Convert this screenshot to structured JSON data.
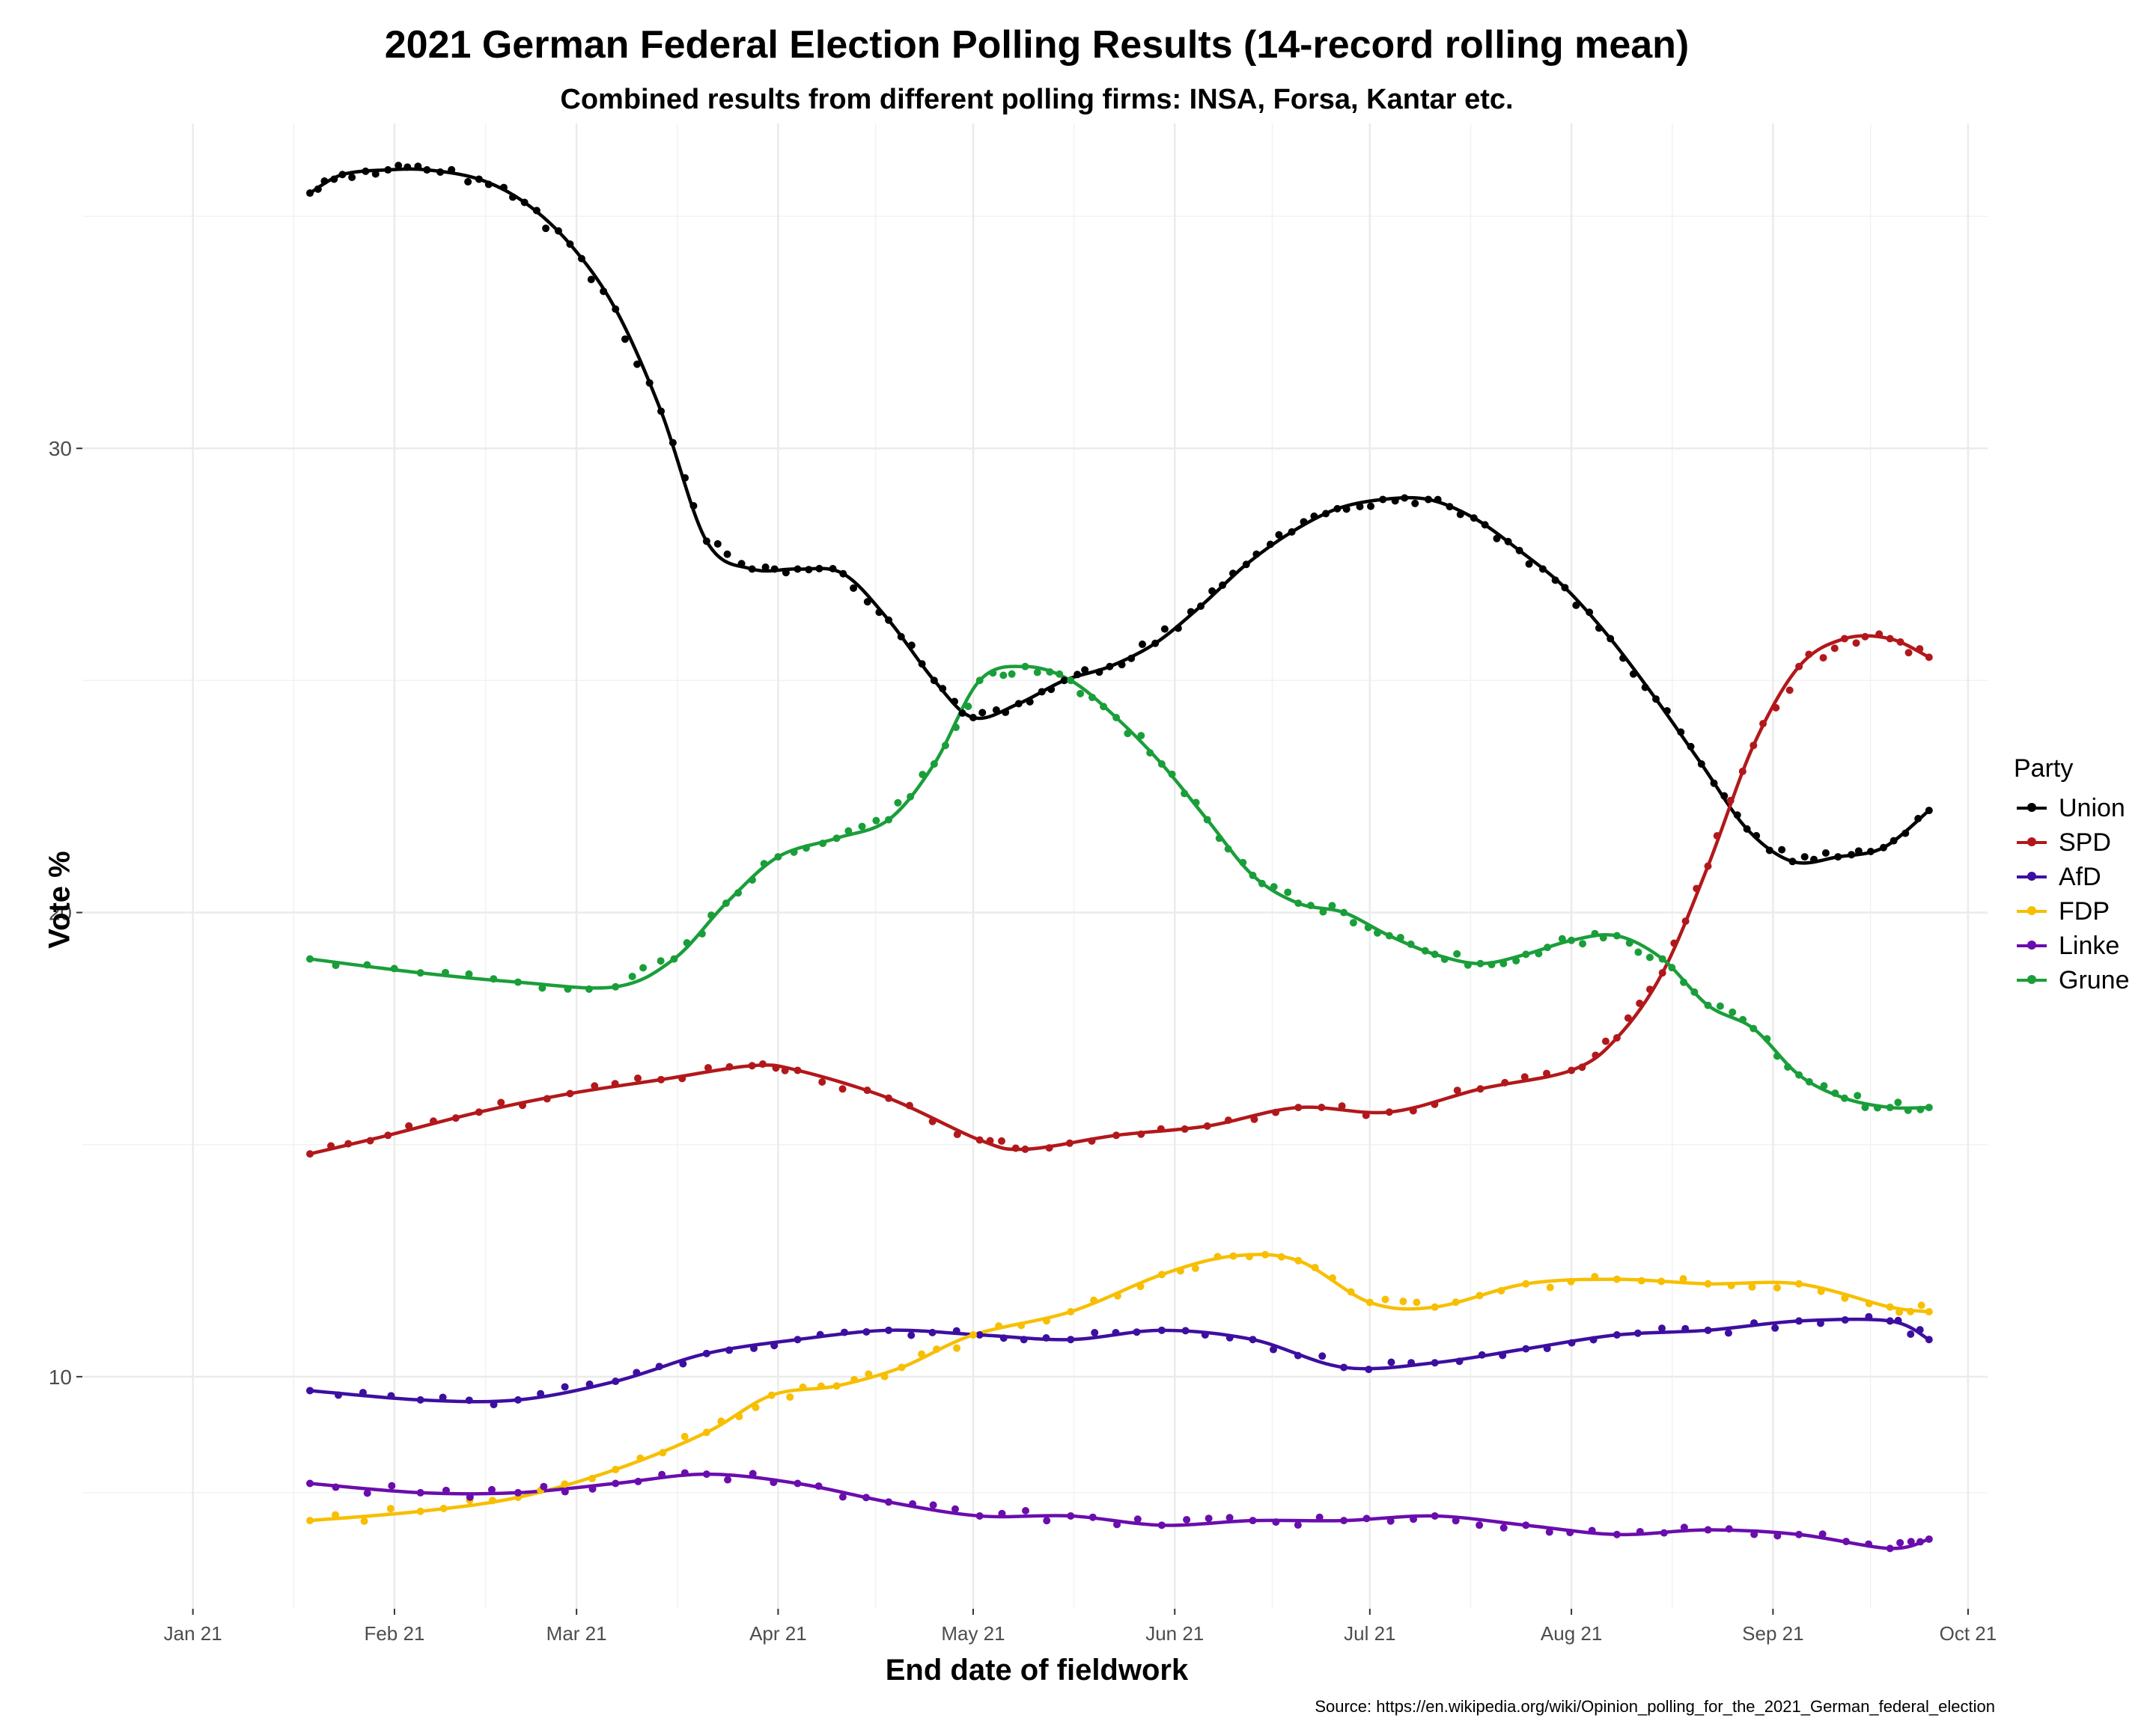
{
  "title": "2021 German Federal Election Polling Results (14-record rolling mean)",
  "subtitle": "Combined results from different polling firms: INSA, Forsa, Kantar etc.",
  "chart_data": {
    "type": "scatter",
    "title": "2021 German Federal Election Polling Results (14-record rolling mean)",
    "subtitle": "Combined results from different polling firms: INSA, Forsa, Kantar etc.",
    "xlabel": "End date of fieldwork",
    "ylabel": "Vote %",
    "x_ticks": [
      "Jan 21",
      "Feb 21",
      "Mar 21",
      "Apr 21",
      "May 21",
      "Jun 21",
      "Jul 21",
      "Aug 21",
      "Sep 21",
      "Oct 21"
    ],
    "y_ticks": [
      10,
      20,
      30
    ],
    "ylim": [
      5,
      37
    ],
    "xlim": [
      "2020-12-15",
      "2021-10-04"
    ],
    "grid": true,
    "legend_title": "Party",
    "legend_position": "right",
    "source": "Source: https://en.wikipedia.org/wiki/Opinion_polling_for_the_2021_German_federal_election",
    "series": [
      {
        "name": "Union",
        "color": "#000000",
        "x": [
          "2021-01-19",
          "2021-01-24",
          "2021-01-31",
          "2021-02-06",
          "2021-02-14",
          "2021-02-21",
          "2021-02-28",
          "2021-03-07",
          "2021-03-14",
          "2021-03-21",
          "2021-03-28",
          "2021-04-04",
          "2021-04-11",
          "2021-04-18",
          "2021-04-25",
          "2021-05-01",
          "2021-05-08",
          "2021-05-15",
          "2021-05-22",
          "2021-05-29",
          "2021-06-05",
          "2021-06-12",
          "2021-06-19",
          "2021-06-26",
          "2021-07-03",
          "2021-07-10",
          "2021-07-17",
          "2021-07-24",
          "2021-07-31",
          "2021-08-07",
          "2021-08-14",
          "2021-08-21",
          "2021-08-28",
          "2021-09-04",
          "2021-09-11",
          "2021-09-18",
          "2021-09-25"
        ],
        "y": [
          35.5,
          35.9,
          36.0,
          36.0,
          35.8,
          35.3,
          34.4,
          33.0,
          30.8,
          28.0,
          27.4,
          27.4,
          27.3,
          26.3,
          25.0,
          24.2,
          24.5,
          25.0,
          25.3,
          25.8,
          26.6,
          27.5,
          28.2,
          28.7,
          28.9,
          28.9,
          28.5,
          27.8,
          27.0,
          25.9,
          24.6,
          23.2,
          21.8,
          21.1,
          21.2,
          21.4,
          22.2
        ]
      },
      {
        "name": "SPD",
        "color": "#b2181b",
        "x": [
          "2021-01-19",
          "2021-01-31",
          "2021-02-14",
          "2021-02-28",
          "2021-03-14",
          "2021-03-28",
          "2021-04-04",
          "2021-04-18",
          "2021-05-02",
          "2021-05-09",
          "2021-05-23",
          "2021-06-06",
          "2021-06-20",
          "2021-07-04",
          "2021-07-18",
          "2021-08-01",
          "2021-08-08",
          "2021-08-15",
          "2021-08-22",
          "2021-08-29",
          "2021-09-05",
          "2021-09-12",
          "2021-09-19",
          "2021-09-25"
        ],
        "y": [
          14.8,
          15.2,
          15.7,
          16.1,
          16.4,
          16.7,
          16.6,
          16.0,
          15.1,
          14.9,
          15.2,
          15.4,
          15.8,
          15.7,
          16.2,
          16.6,
          17.3,
          18.7,
          21.0,
          23.6,
          25.3,
          25.9,
          25.9,
          25.5
        ]
      },
      {
        "name": "AfD",
        "color": "#3d0fa0",
        "x": [
          "2021-01-19",
          "2021-02-05",
          "2021-02-20",
          "2021-03-07",
          "2021-03-21",
          "2021-04-04",
          "2021-04-18",
          "2021-05-02",
          "2021-05-16",
          "2021-05-30",
          "2021-06-13",
          "2021-06-27",
          "2021-07-11",
          "2021-07-25",
          "2021-08-08",
          "2021-08-22",
          "2021-09-05",
          "2021-09-19",
          "2021-09-25"
        ],
        "y": [
          9.7,
          9.5,
          9.5,
          9.9,
          10.5,
          10.8,
          11.0,
          10.9,
          10.8,
          11.0,
          10.8,
          10.2,
          10.3,
          10.6,
          10.9,
          11.0,
          11.2,
          11.2,
          10.8
        ]
      },
      {
        "name": "FDP",
        "color": "#f7bf00",
        "x": [
          "2021-01-19",
          "2021-02-05",
          "2021-02-20",
          "2021-03-07",
          "2021-03-21",
          "2021-03-31",
          "2021-04-10",
          "2021-04-20",
          "2021-05-01",
          "2021-05-16",
          "2021-05-30",
          "2021-06-10",
          "2021-06-20",
          "2021-07-01",
          "2021-07-11",
          "2021-07-25",
          "2021-08-08",
          "2021-08-22",
          "2021-09-05",
          "2021-09-19",
          "2021-09-25"
        ],
        "y": [
          6.9,
          7.1,
          7.4,
          8.0,
          8.8,
          9.6,
          9.8,
          10.2,
          10.9,
          11.4,
          12.2,
          12.6,
          12.5,
          11.6,
          11.5,
          12.0,
          12.1,
          12.0,
          12.0,
          11.5,
          11.4
        ]
      },
      {
        "name": "Linke",
        "color": "#6a0dad",
        "x": [
          "2021-01-19",
          "2021-02-05",
          "2021-02-20",
          "2021-03-07",
          "2021-03-21",
          "2021-04-04",
          "2021-04-18",
          "2021-05-02",
          "2021-05-16",
          "2021-05-30",
          "2021-06-13",
          "2021-06-27",
          "2021-07-11",
          "2021-07-25",
          "2021-08-08",
          "2021-08-22",
          "2021-09-05",
          "2021-09-19",
          "2021-09-25"
        ],
        "y": [
          7.7,
          7.5,
          7.5,
          7.7,
          7.9,
          7.7,
          7.3,
          7.0,
          7.0,
          6.8,
          6.9,
          6.9,
          7.0,
          6.8,
          6.6,
          6.7,
          6.6,
          6.3,
          6.5
        ]
      },
      {
        "name": "Grune",
        "color": "#1a9e3a",
        "x": [
          "2021-01-19",
          "2021-02-05",
          "2021-02-20",
          "2021-03-07",
          "2021-03-16",
          "2021-03-24",
          "2021-04-01",
          "2021-04-10",
          "2021-04-18",
          "2021-04-25",
          "2021-05-02",
          "2021-05-09",
          "2021-05-16",
          "2021-05-23",
          "2021-05-30",
          "2021-06-06",
          "2021-06-13",
          "2021-06-20",
          "2021-06-27",
          "2021-07-04",
          "2021-07-11",
          "2021-07-18",
          "2021-07-25",
          "2021-08-01",
          "2021-08-08",
          "2021-08-15",
          "2021-08-22",
          "2021-08-29",
          "2021-09-05",
          "2021-09-12",
          "2021-09-19",
          "2021-09-25"
        ],
        "y": [
          19.0,
          18.7,
          18.5,
          18.4,
          19.0,
          20.2,
          21.2,
          21.6,
          22.0,
          23.2,
          25.0,
          25.3,
          25.0,
          24.2,
          23.2,
          22.0,
          20.8,
          20.2,
          20.0,
          19.5,
          19.1,
          18.9,
          19.1,
          19.4,
          19.5,
          19.0,
          18.0,
          17.5,
          16.5,
          16.0,
          15.8,
          15.8
        ]
      }
    ]
  }
}
